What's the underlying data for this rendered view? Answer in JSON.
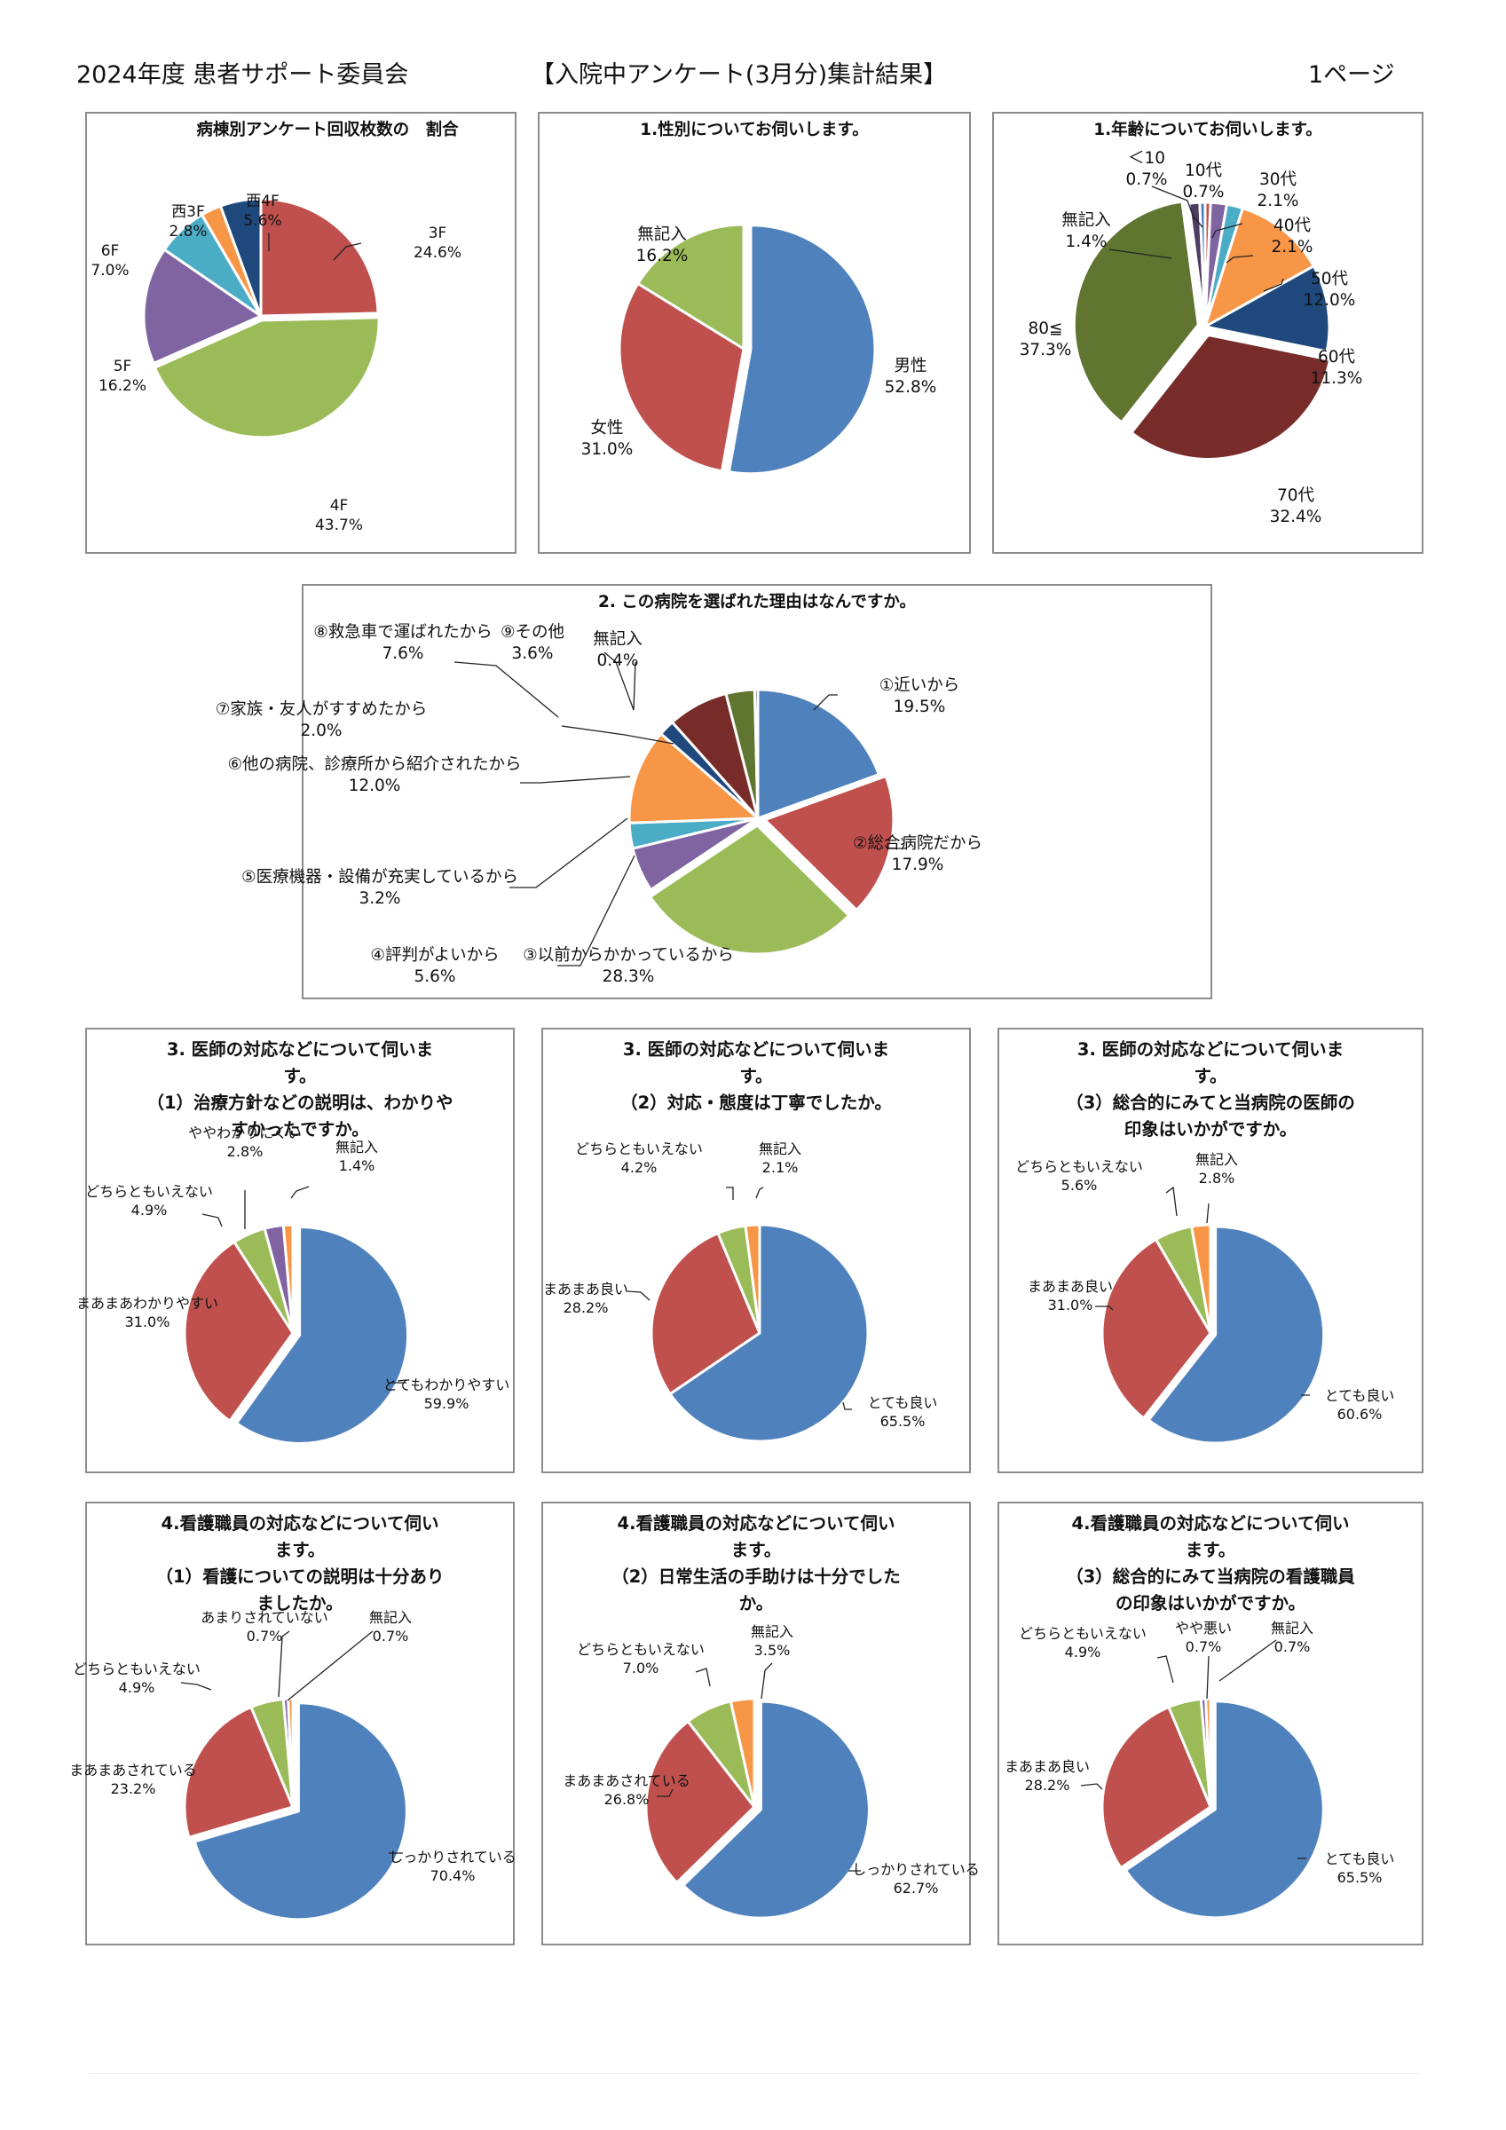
{
  "header": {
    "org": "2024年度 患者サポート委員会",
    "title": "【入院中アンケート(3月分)集計結果】",
    "page": "1ページ"
  },
  "chart_data": [
    {
      "id": "ward",
      "type": "pie",
      "title": "病棟別アンケート回収枚数の　割合",
      "slices": [
        {
          "label": "3F",
          "value": 24.6,
          "text": "24.6%",
          "color": "#c0504d"
        },
        {
          "label": "4F",
          "value": 43.7,
          "text": "43.7%",
          "color": "#9bbb59"
        },
        {
          "label": "5F",
          "value": 16.2,
          "text": "16.2%",
          "color": "#8064a2"
        },
        {
          "label": "6F",
          "value": 7.0,
          "text": "7.0%",
          "color": "#4bacc6"
        },
        {
          "label": "西3F",
          "value": 2.8,
          "text": "2.8%",
          "color": "#f79646"
        },
        {
          "label": "西4F",
          "value": 5.6,
          "text": "5.6%",
          "color": "#1f497d"
        }
      ]
    },
    {
      "id": "gender",
      "type": "pie",
      "title": "1.性別についてお伺いします。",
      "slices": [
        {
          "label": "男性",
          "value": 52.8,
          "text": "52.8%",
          "color": "#4f81bd"
        },
        {
          "label": "女性",
          "value": 31.0,
          "text": "31.0%",
          "color": "#c0504d"
        },
        {
          "label": "無記入",
          "value": 16.2,
          "text": "16.2%",
          "color": "#9bbb59"
        }
      ]
    },
    {
      "id": "age",
      "type": "pie",
      "title": "1.年齢についてお伺いします。",
      "slices": [
        {
          "label": "10代",
          "value": 0.7,
          "text": "0.7%",
          "color": "#c0504d"
        },
        {
          "label": "30代",
          "value": 2.1,
          "text": "2.1%",
          "color": "#8064a2"
        },
        {
          "label": "40代",
          "value": 2.1,
          "text": "2.1%",
          "color": "#4bacc6"
        },
        {
          "label": "50代",
          "value": 12.0,
          "text": "12.0%",
          "color": "#f79646"
        },
        {
          "label": "60代",
          "value": 11.3,
          "text": "11.3%",
          "color": "#1f497d"
        },
        {
          "label": "70代",
          "value": 32.4,
          "text": "32.4%",
          "color": "#772c2a"
        },
        {
          "label": "80≦",
          "value": 37.3,
          "text": "37.3%",
          "color": "#5f7530"
        },
        {
          "label": "無記入",
          "value": 1.4,
          "text": "1.4%",
          "color": "#4d3b62"
        },
        {
          "label": "＜10",
          "value": 0.7,
          "text": "0.7%",
          "color": "#4f81bd"
        }
      ]
    },
    {
      "id": "reason",
      "type": "pie",
      "title": "2. この病院を選ばれた理由はなんですか。",
      "slices": [
        {
          "label": "①近いから",
          "value": 19.5,
          "text": "19.5%",
          "color": "#4f81bd"
        },
        {
          "label": "②総合病院だから",
          "value": 17.9,
          "text": "17.9%",
          "color": "#c0504d"
        },
        {
          "label": "③以前からかかっているから",
          "value": 28.3,
          "text": "28.3%",
          "color": "#9bbb59"
        },
        {
          "label": "④評判がよいから",
          "value": 5.6,
          "text": "5.6%",
          "color": "#8064a2"
        },
        {
          "label": "⑤医療機器・設備が充実しているから",
          "value": 3.2,
          "text": "3.2%",
          "color": "#4bacc6"
        },
        {
          "label": "⑥他の病院、診療所から紹介されたから",
          "value": 12.0,
          "text": "12.0%",
          "color": "#f79646"
        },
        {
          "label": "⑦家族・友人がすすめたから",
          "value": 2.0,
          "text": "2.0%",
          "color": "#1f497d"
        },
        {
          "label": "⑧救急車で運ばれたから",
          "value": 7.6,
          "text": "7.6%",
          "color": "#772c2a"
        },
        {
          "label": "⑨その他",
          "value": 3.6,
          "text": "3.6%",
          "color": "#5f7530"
        },
        {
          "label": "無記入",
          "value": 0.4,
          "text": "0.4%",
          "color": "#4d3b62"
        }
      ]
    },
    {
      "id": "doc1",
      "type": "pie",
      "title": "3. 医師の対応などについて伺いま\nす。\n（1）治療方針などの説明は、わかりや\nすかったですか。",
      "slices": [
        {
          "label": "とてもわかりやすい",
          "value": 59.9,
          "text": "59.9%",
          "color": "#4f81bd"
        },
        {
          "label": "まあまあわかりやすい",
          "value": 31.0,
          "text": "31.0%",
          "color": "#c0504d"
        },
        {
          "label": "どちらともいえない",
          "value": 4.9,
          "text": "4.9%",
          "color": "#9bbb59"
        },
        {
          "label": "ややわかりにくい",
          "value": 2.8,
          "text": "2.8%",
          "color": "#8064a2"
        },
        {
          "label": "無記入",
          "value": 1.4,
          "text": "1.4%",
          "color": "#f79646"
        }
      ]
    },
    {
      "id": "doc2",
      "type": "pie",
      "title": "3. 医師の対応などについて伺いま\nす。\n（2）対応・態度は丁寧でしたか。",
      "slices": [
        {
          "label": "とても良い",
          "value": 65.5,
          "text": "65.5%",
          "color": "#4f81bd"
        },
        {
          "label": "まあまあ良い",
          "value": 28.2,
          "text": "28.2%",
          "color": "#c0504d"
        },
        {
          "label": "どちらともいえない",
          "value": 4.2,
          "text": "4.2%",
          "color": "#9bbb59"
        },
        {
          "label": "無記入",
          "value": 2.1,
          "text": "2.1%",
          "color": "#f79646"
        }
      ]
    },
    {
      "id": "doc3",
      "type": "pie",
      "title": "3. 医師の対応などについて伺いま\nす。\n（3）総合的にみてと当病院の医師の\n印象はいかがですか。",
      "slices": [
        {
          "label": "とても良い",
          "value": 60.6,
          "text": "60.6%",
          "color": "#4f81bd"
        },
        {
          "label": "まあまあ良い",
          "value": 31.0,
          "text": "31.0%",
          "color": "#c0504d"
        },
        {
          "label": "どちらともいえない",
          "value": 5.6,
          "text": "5.6%",
          "color": "#9bbb59"
        },
        {
          "label": "無記入",
          "value": 2.8,
          "text": "2.8%",
          "color": "#f79646"
        }
      ]
    },
    {
      "id": "nurse1",
      "type": "pie",
      "title": "4.看護職員の対応などについて伺い\nます。\n（1）看護についての説明は十分あり\nましたか。",
      "slices": [
        {
          "label": "しっかりされている",
          "value": 70.4,
          "text": "70.4%",
          "color": "#4f81bd"
        },
        {
          "label": "まあまあされている",
          "value": 23.2,
          "text": "23.2%",
          "color": "#c0504d"
        },
        {
          "label": "どちらともいえない",
          "value": 4.9,
          "text": "4.9%",
          "color": "#9bbb59"
        },
        {
          "label": "あまりされていない",
          "value": 0.7,
          "text": "0.7%",
          "color": "#8064a2"
        },
        {
          "label": "無記入",
          "value": 0.7,
          "text": "0.7%",
          "color": "#f79646"
        }
      ]
    },
    {
      "id": "nurse2",
      "type": "pie",
      "title": "4.看護職員の対応などについて伺い\nます。\n（2）日常生活の手助けは十分でした\nか。",
      "slices": [
        {
          "label": "しっかりされている",
          "value": 62.7,
          "text": "62.7%",
          "color": "#4f81bd"
        },
        {
          "label": "まあまあされている",
          "value": 26.8,
          "text": "26.8%",
          "color": "#c0504d"
        },
        {
          "label": "どちらともいえない",
          "value": 7.0,
          "text": "7.0%",
          "color": "#9bbb59"
        },
        {
          "label": "無記入",
          "value": 3.5,
          "text": "3.5%",
          "color": "#f79646"
        }
      ]
    },
    {
      "id": "nurse3",
      "type": "pie",
      "title": "4.看護職員の対応などについて伺い\nます。\n（3）総合的にみて当病院の看護職員\nの印象はいかがですか。",
      "slices": [
        {
          "label": "とても良い",
          "value": 65.5,
          "text": "65.5%",
          "color": "#4f81bd"
        },
        {
          "label": "まあまあ良い",
          "value": 28.2,
          "text": "28.2%",
          "color": "#c0504d"
        },
        {
          "label": "どちらともいえない",
          "value": 4.9,
          "text": "4.9%",
          "color": "#9bbb59"
        },
        {
          "label": "やや悪い",
          "value": 0.7,
          "text": "0.7%",
          "color": "#8064a2"
        },
        {
          "label": "無記入",
          "value": 0.7,
          "text": "0.7%",
          "color": "#f79646"
        }
      ]
    }
  ]
}
